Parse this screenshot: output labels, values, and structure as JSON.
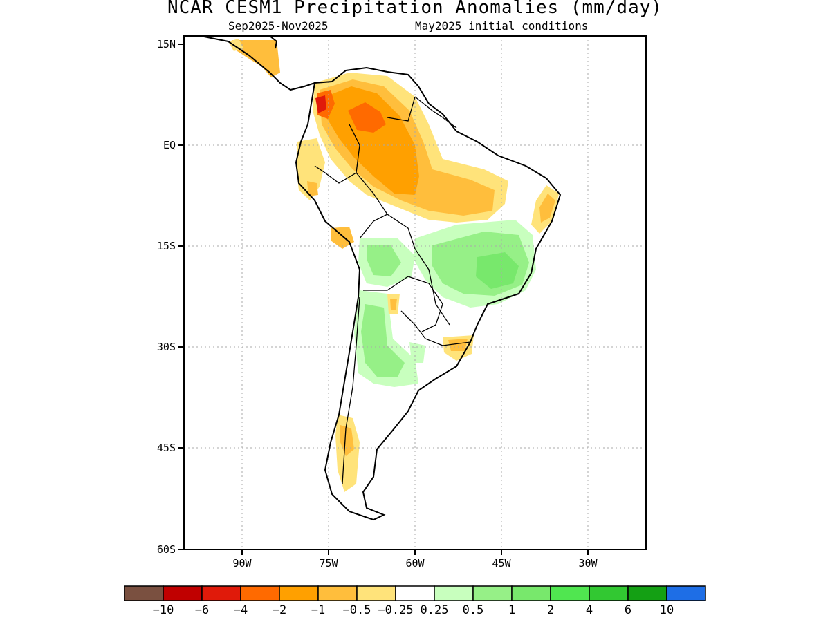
{
  "title": "NCAR_CESM1 Precipitation Anomalies (mm/day)",
  "subtitle_left": "Sep2025-Nov2025",
  "subtitle_right": "May2025 initial conditions",
  "map": {
    "lat_ticks": [
      "15N",
      "EQ",
      "15S",
      "30S",
      "45S",
      "60S"
    ],
    "lon_ticks": [
      "90W",
      "75W",
      "60W",
      "45W",
      "30W"
    ],
    "grid": true
  },
  "colorbar": {
    "colors": [
      "#7a5040",
      "#c00000",
      "#e01a0a",
      "#ff6a00",
      "#ffa000",
      "#ffbe3c",
      "#ffe37a",
      "#ffffff",
      "#c8ffbe",
      "#96f087",
      "#78e86c",
      "#50e650",
      "#32c832",
      "#14a014",
      "#1e6ee6"
    ],
    "labels": [
      "-10",
      "-6",
      "-4",
      "-2",
      "-1",
      "-0.5",
      "-0.25",
      "0.25",
      "0.5",
      "1",
      "2",
      "4",
      "6",
      "10"
    ]
  },
  "legend_colors": {
    "dry_light": "#ffe37a",
    "dry_mid": "#ffbe3c",
    "dry_strong": "#ffa000",
    "dry_heavy": "#ff6a00",
    "dry_extreme": "#e01a0a",
    "wet_light": "#c8ffbe",
    "wet_mid": "#96f087",
    "wet_strong": "#78e86c"
  }
}
